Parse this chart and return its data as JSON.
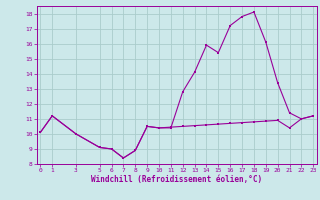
{
  "title": "",
  "xlabel": "Windchill (Refroidissement éolien,°C)",
  "bg_color": "#cce8ea",
  "grid_color": "#aacccc",
  "line_color": "#990099",
  "x_hours": [
    0,
    1,
    3,
    5,
    6,
    7,
    8,
    9,
    10,
    11,
    12,
    13,
    14,
    15,
    16,
    17,
    18,
    19,
    20,
    21,
    22,
    23
  ],
  "temp_line": [
    10.1,
    11.2,
    10.0,
    9.1,
    9.0,
    8.4,
    8.9,
    10.5,
    10.4,
    10.4,
    12.8,
    14.1,
    15.9,
    15.4,
    17.2,
    17.8,
    18.1,
    16.1,
    13.4,
    11.4,
    11.0,
    11.2
  ],
  "windchill_line": [
    10.1,
    11.2,
    10.0,
    9.1,
    9.0,
    8.4,
    8.9,
    10.5,
    10.4,
    10.45,
    10.5,
    10.55,
    10.6,
    10.65,
    10.7,
    10.75,
    10.8,
    10.85,
    10.9,
    10.4,
    11.0,
    11.2
  ],
  "ylim": [
    8,
    18.5
  ],
  "yticks": [
    8,
    9,
    10,
    11,
    12,
    13,
    14,
    15,
    16,
    17,
    18
  ],
  "xticks": [
    0,
    1,
    3,
    5,
    6,
    7,
    8,
    9,
    10,
    11,
    12,
    13,
    14,
    15,
    16,
    17,
    18,
    19,
    20,
    21,
    22,
    23
  ],
  "xlim": [
    -0.3,
    23.3
  ]
}
